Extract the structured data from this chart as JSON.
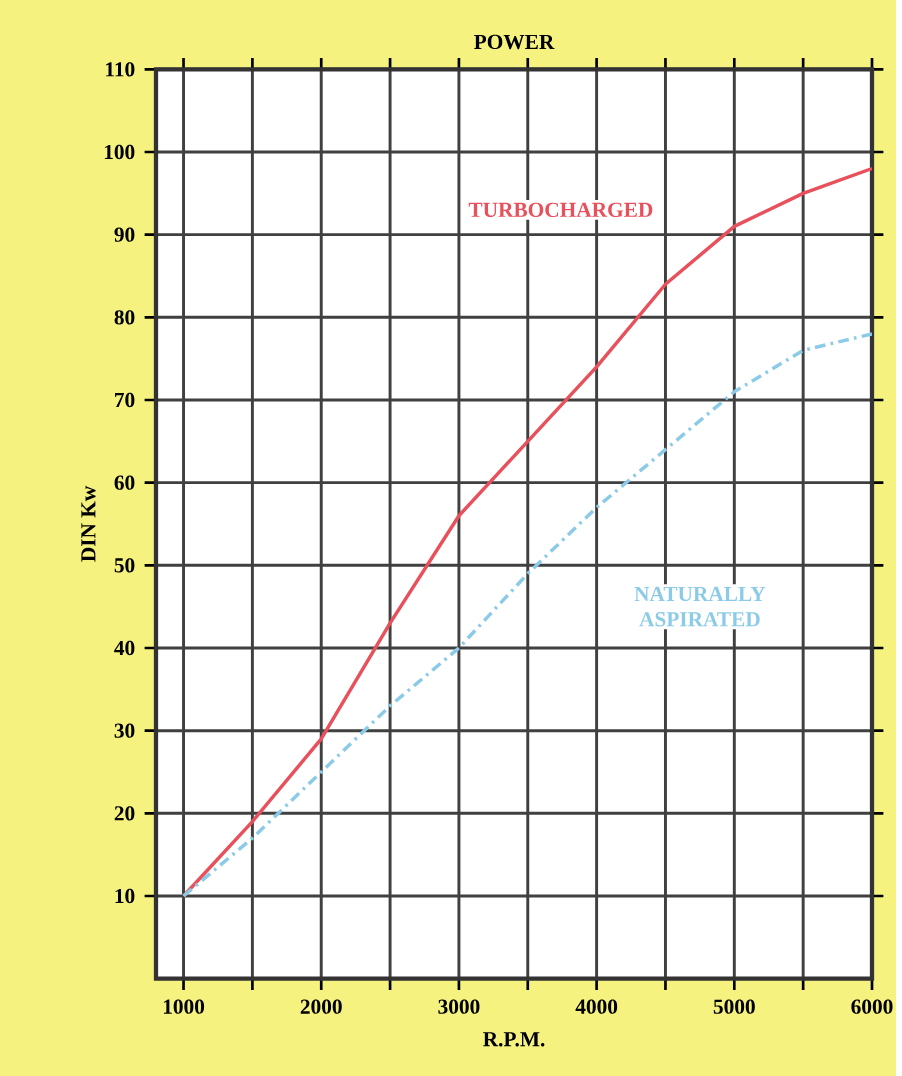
{
  "chart_data": {
    "type": "line",
    "title": "POWER",
    "xlabel": "R.P.M.",
    "ylabel": "DIN Kw",
    "x": [
      1000,
      1500,
      2000,
      2500,
      3000,
      3500,
      4000,
      4500,
      5000,
      5500,
      6000
    ],
    "series": [
      {
        "name": "TURBOCHARGED",
        "color": "#e8505b",
        "line_style": "solid",
        "values": [
          10,
          19,
          29,
          43,
          56,
          65,
          74,
          84,
          91,
          95,
          98
        ]
      },
      {
        "name": "NATURALLY ASPIRATED",
        "color": "#8ccbe8",
        "line_style": "dashed",
        "values": [
          10,
          17,
          25,
          33,
          40,
          49,
          57,
          64,
          71,
          76,
          78
        ]
      }
    ],
    "xlim": [
      800,
      6000
    ],
    "ylim": [
      0,
      110
    ],
    "xticks": [
      1000,
      {
        "value": 1500,
        "label": null
      },
      2000,
      {
        "value": 2500,
        "label": null
      },
      3000,
      {
        "value": 3500,
        "label": null
      },
      4000,
      {
        "value": 4500,
        "label": null
      },
      5000,
      {
        "value": 5500,
        "label": null
      },
      6000
    ],
    "yticks": [
      10,
      20,
      30,
      40,
      50,
      60,
      70,
      80,
      90,
      100,
      110
    ],
    "grid": true,
    "marker": "none"
  }
}
